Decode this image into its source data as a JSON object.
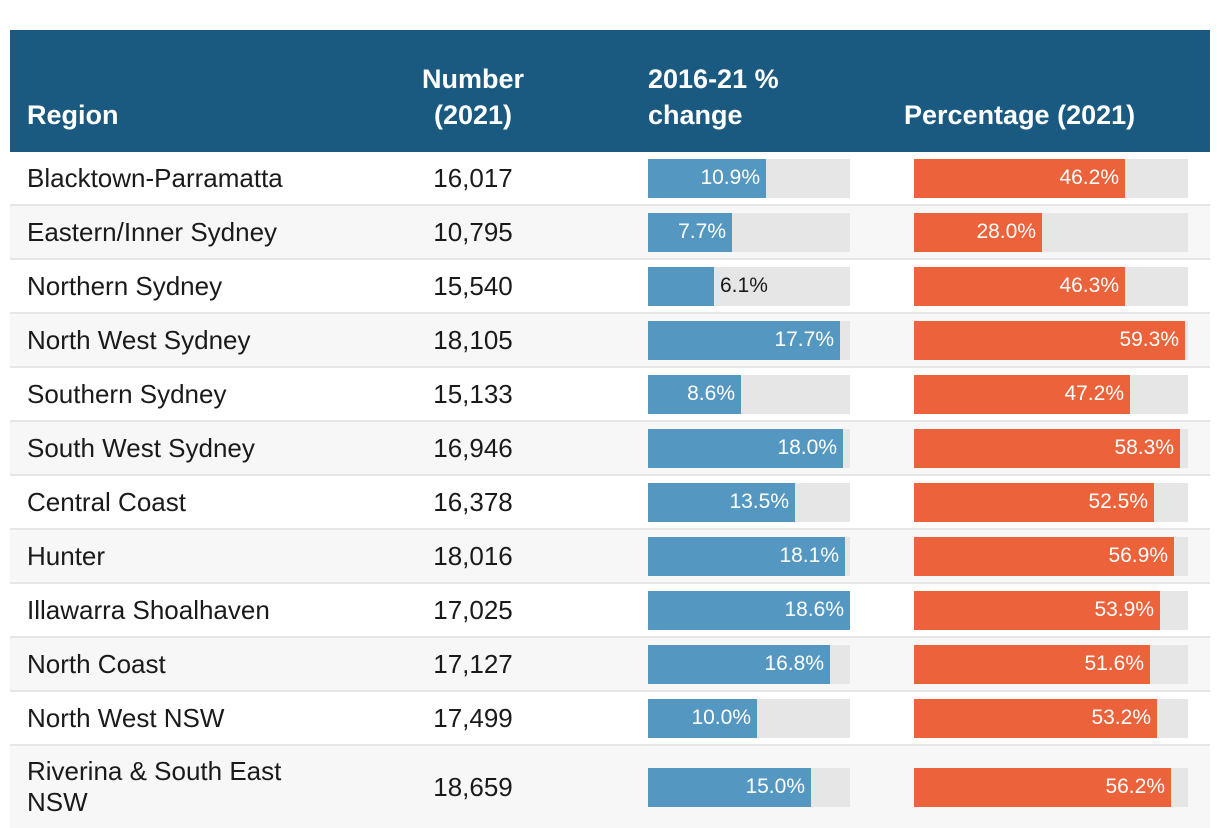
{
  "headers": {
    "region": "Region",
    "number": "Number (2021)",
    "change": "2016-21 % change",
    "percentage": "Percentage (2021)"
  },
  "colors": {
    "change_bar": "#5498c2",
    "percentage_bar": "#ec623a",
    "header_bg": "#1b5a80",
    "track": "#e6e6e6"
  },
  "chart_data": {
    "type": "table",
    "columns": [
      "Region",
      "Number (2021)",
      "2016-21 % change",
      "Percentage (2021)"
    ],
    "change_max": 18.6,
    "percentage_max": 60,
    "rows": [
      {
        "region": "Blacktown-Parramatta",
        "number": "16,017",
        "change": 10.9,
        "change_label": "10.9%",
        "percentage": 46.2,
        "percentage_label": "46.2%"
      },
      {
        "region": "Eastern/Inner Sydney",
        "number": "10,795",
        "change": 7.7,
        "change_label": "7.7%",
        "percentage": 28.0,
        "percentage_label": "28.0%"
      },
      {
        "region": "Northern Sydney",
        "number": "15,540",
        "change": 6.1,
        "change_label": "6.1%",
        "percentage": 46.3,
        "percentage_label": "46.3%"
      },
      {
        "region": "North West Sydney",
        "number": "18,105",
        "change": 17.7,
        "change_label": "17.7%",
        "percentage": 59.3,
        "percentage_label": "59.3%"
      },
      {
        "region": "Southern Sydney",
        "number": "15,133",
        "change": 8.6,
        "change_label": "8.6%",
        "percentage": 47.2,
        "percentage_label": "47.2%"
      },
      {
        "region": "South West Sydney",
        "number": "16,946",
        "change": 18.0,
        "change_label": "18.0%",
        "percentage": 58.3,
        "percentage_label": "58.3%"
      },
      {
        "region": "Central Coast",
        "number": "16,378",
        "change": 13.5,
        "change_label": "13.5%",
        "percentage": 52.5,
        "percentage_label": "52.5%"
      },
      {
        "region": "Hunter",
        "number": "18,016",
        "change": 18.1,
        "change_label": "18.1%",
        "percentage": 56.9,
        "percentage_label": "56.9%"
      },
      {
        "region": "Illawarra Shoalhaven",
        "number": "17,025",
        "change": 18.6,
        "change_label": "18.6%",
        "percentage": 53.9,
        "percentage_label": "53.9%"
      },
      {
        "region": "North Coast",
        "number": "17,127",
        "change": 16.8,
        "change_label": "16.8%",
        "percentage": 51.6,
        "percentage_label": "51.6%"
      },
      {
        "region": "North West NSW",
        "number": "17,499",
        "change": 10.0,
        "change_label": "10.0%",
        "percentage": 53.2,
        "percentage_label": "53.2%"
      },
      {
        "region": "Riverina & South East NSW",
        "number": "18,659",
        "change": 15.0,
        "change_label": "15.0%",
        "percentage": 56.2,
        "percentage_label": "56.2%"
      }
    ]
  }
}
